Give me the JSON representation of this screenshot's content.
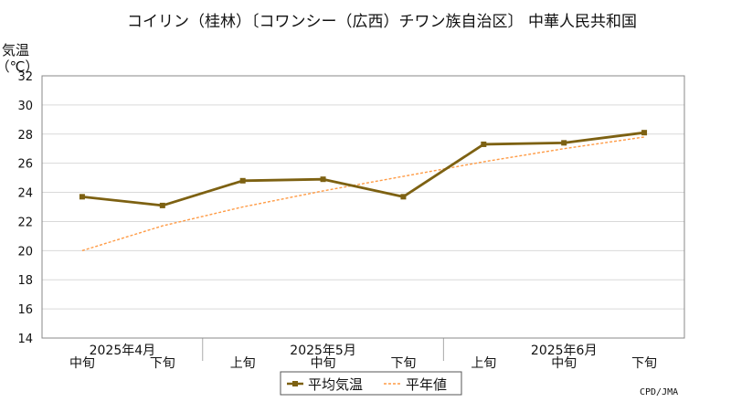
{
  "chart_data": {
    "type": "line",
    "title": "コイリン（桂林）〔コワンシー（広西）チワン族自治区〕 中華人民共和国",
    "ylabel_line1": "気温",
    "ylabel_line2": "（℃）",
    "ylim": [
      14,
      32
    ],
    "y_ticks": [
      "14",
      "16",
      "18",
      "20",
      "22",
      "24",
      "26",
      "28",
      "30",
      "32"
    ],
    "categories": [
      "中旬",
      "下旬",
      "上旬",
      "中旬",
      "下旬",
      "上旬",
      "中旬",
      "下旬"
    ],
    "month_labels": [
      "2025年4月",
      "2025年5月",
      "2025年6月"
    ],
    "series": [
      {
        "name": "平均気温",
        "values": [
          23.7,
          23.1,
          24.8,
          24.9,
          23.7,
          27.3,
          27.4,
          28.1
        ],
        "color": "#7d6112"
      },
      {
        "name": "平年値",
        "values": [
          20.0,
          21.7,
          23.0,
          24.1,
          25.1,
          26.1,
          27.0,
          27.8
        ],
        "color": "#ff9b45"
      }
    ],
    "grid": true,
    "legend_position": "bottom",
    "source": "CPD/JMA"
  }
}
